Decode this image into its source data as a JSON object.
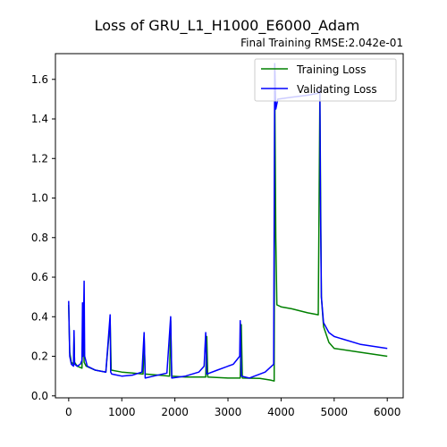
{
  "chart_data": {
    "type": "line",
    "title": "Loss of GRU_L1_H1000_E6000_Adam",
    "subtitle": "Final Training RMSE:2.042e-01",
    "xlabel": "",
    "ylabel": "",
    "xlim": [
      -250,
      6300
    ],
    "ylim": [
      -0.01,
      1.73
    ],
    "xticks": [
      0,
      1000,
      2000,
      3000,
      4000,
      5000,
      6000
    ],
    "yticks": [
      0.0,
      0.2,
      0.4,
      0.6,
      0.8,
      1.0,
      1.2,
      1.4,
      1.6
    ],
    "xtick_labels": [
      "0",
      "1000",
      "2000",
      "3000",
      "4000",
      "5000",
      "6000"
    ],
    "ytick_labels": [
      "0.0",
      "0.2",
      "0.4",
      "0.6",
      "0.8",
      "1.0",
      "1.2",
      "1.4",
      "1.6"
    ],
    "grid": false,
    "legend_position": "top-right",
    "series": [
      {
        "name": "Training Loss",
        "color": "#008000",
        "points": [
          [
            0,
            0.46
          ],
          [
            20,
            0.22
          ],
          [
            50,
            0.17
          ],
          [
            90,
            0.16
          ],
          [
            100,
            0.3
          ],
          [
            110,
            0.17
          ],
          [
            160,
            0.15
          ],
          [
            250,
            0.14
          ],
          [
            270,
            0.44
          ],
          [
            290,
            0.17
          ],
          [
            330,
            0.15
          ],
          [
            500,
            0.13
          ],
          [
            700,
            0.12
          ],
          [
            780,
            0.38
          ],
          [
            800,
            0.13
          ],
          [
            1000,
            0.12
          ],
          [
            1200,
            0.115
          ],
          [
            1400,
            0.11
          ],
          [
            1420,
            0.3
          ],
          [
            1440,
            0.11
          ],
          [
            1700,
            0.105
          ],
          [
            1900,
            0.1
          ],
          [
            1920,
            0.38
          ],
          [
            1940,
            0.1
          ],
          [
            2200,
            0.095
          ],
          [
            2400,
            0.095
          ],
          [
            2580,
            0.095
          ],
          [
            2600,
            0.3
          ],
          [
            2620,
            0.095
          ],
          [
            3000,
            0.09
          ],
          [
            3230,
            0.09
          ],
          [
            3250,
            0.36
          ],
          [
            3270,
            0.09
          ],
          [
            3600,
            0.088
          ],
          [
            3800,
            0.08
          ],
          [
            3870,
            0.075
          ],
          [
            3880,
            1.6
          ],
          [
            3900,
            0.8
          ],
          [
            3920,
            0.46
          ],
          [
            4000,
            0.45
          ],
          [
            4200,
            0.44
          ],
          [
            4500,
            0.42
          ],
          [
            4700,
            0.41
          ],
          [
            4730,
            1.52
          ],
          [
            4760,
            0.5
          ],
          [
            4800,
            0.35
          ],
          [
            4900,
            0.27
          ],
          [
            5000,
            0.24
          ],
          [
            5500,
            0.22
          ],
          [
            6000,
            0.2
          ]
        ]
      },
      {
        "name": "Validating Loss",
        "color": "#0000ff",
        "points": [
          [
            0,
            0.48
          ],
          [
            20,
            0.2
          ],
          [
            50,
            0.16
          ],
          [
            90,
            0.15
          ],
          [
            100,
            0.33
          ],
          [
            110,
            0.16
          ],
          [
            160,
            0.15
          ],
          [
            220,
            0.16
          ],
          [
            250,
            0.18
          ],
          [
            260,
            0.47
          ],
          [
            270,
            0.2
          ],
          [
            290,
            0.58
          ],
          [
            300,
            0.2
          ],
          [
            350,
            0.15
          ],
          [
            500,
            0.13
          ],
          [
            700,
            0.12
          ],
          [
            780,
            0.41
          ],
          [
            790,
            0.12
          ],
          [
            810,
            0.11
          ],
          [
            1000,
            0.1
          ],
          [
            1200,
            0.105
          ],
          [
            1380,
            0.12
          ],
          [
            1420,
            0.32
          ],
          [
            1440,
            0.09
          ],
          [
            1600,
            0.1
          ],
          [
            1850,
            0.115
          ],
          [
            1920,
            0.4
          ],
          [
            1940,
            0.09
          ],
          [
            2200,
            0.1
          ],
          [
            2450,
            0.12
          ],
          [
            2550,
            0.15
          ],
          [
            2580,
            0.32
          ],
          [
            2600,
            0.11
          ],
          [
            2800,
            0.13
          ],
          [
            3100,
            0.16
          ],
          [
            3220,
            0.2
          ],
          [
            3230,
            0.38
          ],
          [
            3250,
            0.1
          ],
          [
            3400,
            0.09
          ],
          [
            3700,
            0.12
          ],
          [
            3860,
            0.16
          ],
          [
            3880,
            1.68
          ],
          [
            3900,
            1.45
          ],
          [
            3940,
            1.5
          ],
          [
            4200,
            1.51
          ],
          [
            4500,
            1.52
          ],
          [
            4700,
            1.53
          ],
          [
            4730,
            1.55
          ],
          [
            4740,
            1.0
          ],
          [
            4760,
            0.5
          ],
          [
            4800,
            0.37
          ],
          [
            4900,
            0.32
          ],
          [
            5000,
            0.3
          ],
          [
            5500,
            0.26
          ],
          [
            6000,
            0.24
          ]
        ]
      }
    ]
  }
}
